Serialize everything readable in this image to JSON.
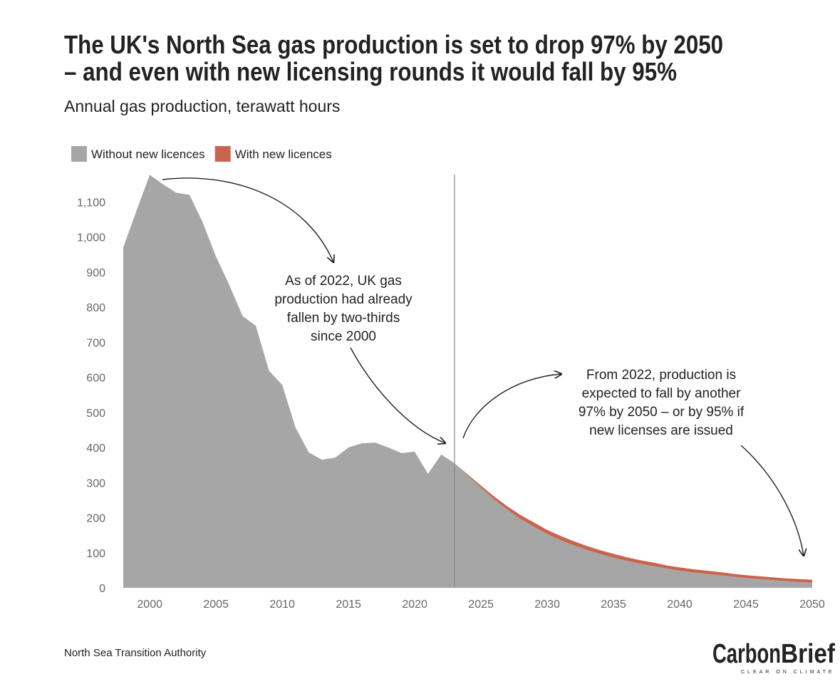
{
  "chart_data": {
    "type": "stacked_area",
    "title": [
      "The UK's North Sea gas production is set to drop 97% by 2050",
      "– and even with new licensing rounds it would fall by 95%"
    ],
    "subtitle": "Annual gas production, terawatt hours",
    "x": [
      1998,
      1999,
      2000,
      2001,
      2002,
      2003,
      2004,
      2005,
      2006,
      2007,
      2008,
      2009,
      2010,
      2011,
      2012,
      2013,
      2014,
      2015,
      2016,
      2017,
      2018,
      2019,
      2020,
      2021,
      2022,
      2023,
      2024,
      2025,
      2026,
      2027,
      2028,
      2029,
      2030,
      2031,
      2032,
      2033,
      2034,
      2035,
      2036,
      2037,
      2038,
      2039,
      2040,
      2041,
      2042,
      2043,
      2044,
      2045,
      2046,
      2047,
      2048,
      2049,
      2050
    ],
    "series": [
      {
        "name": "Without new licences",
        "color": "#a6a6a6",
        "values": [
          970,
          1075,
          1177,
          1150,
          1126,
          1120,
          1041,
          944,
          863,
          775,
          747,
          619,
          578,
          457,
          386,
          365,
          371,
          400,
          412,
          414,
          400,
          384,
          388,
          325,
          380,
          355,
          320,
          285,
          252,
          222,
          196,
          174,
          153,
          136,
          121,
          108,
          96,
          86,
          77,
          69,
          62,
          55,
          49,
          44,
          40,
          36,
          32,
          28,
          25,
          22,
          19,
          17,
          15
        ]
      },
      {
        "name": "With new licences",
        "color": "#c8654f",
        "values": [
          0,
          0,
          0,
          0,
          0,
          0,
          0,
          0,
          0,
          0,
          0,
          0,
          0,
          0,
          0,
          0,
          0,
          0,
          0,
          0,
          0,
          0,
          0,
          0,
          0,
          0,
          3,
          6,
          8,
          10,
          11,
          12,
          12,
          12,
          12,
          11,
          11,
          11,
          10,
          10,
          10,
          9,
          9,
          9,
          9,
          9,
          8,
          8,
          8,
          8,
          8,
          8,
          8
        ]
      }
    ],
    "xlim": [
      1998,
      2050
    ],
    "xticks": [
      2000,
      2005,
      2010,
      2015,
      2020,
      2025,
      2030,
      2035,
      2040,
      2045,
      2050
    ],
    "ylim": [
      0,
      1200
    ],
    "yticks": [
      0,
      100,
      200,
      300,
      400,
      500,
      600,
      700,
      800,
      900,
      {
        "value": 1000,
        "label": "1,000"
      },
      {
        "value": 1100,
        "label": "1,100"
      }
    ],
    "grid": false,
    "vline": 2023,
    "annotations": [
      {
        "lines": [
          "As of 2022, UK gas",
          "production had already",
          "fallen by two-thirds",
          "since 2000"
        ]
      },
      {
        "lines": [
          "From 2022, production is",
          "expected to fall by another",
          "97% by 2050 – or by 95% if",
          "new licenses are issued"
        ]
      }
    ],
    "source": "North Sea Transition Authority",
    "logo": {
      "name": [
        "Carbon",
        "Brief"
      ],
      "tagline": "CLEAR ON CLIMATE"
    }
  }
}
